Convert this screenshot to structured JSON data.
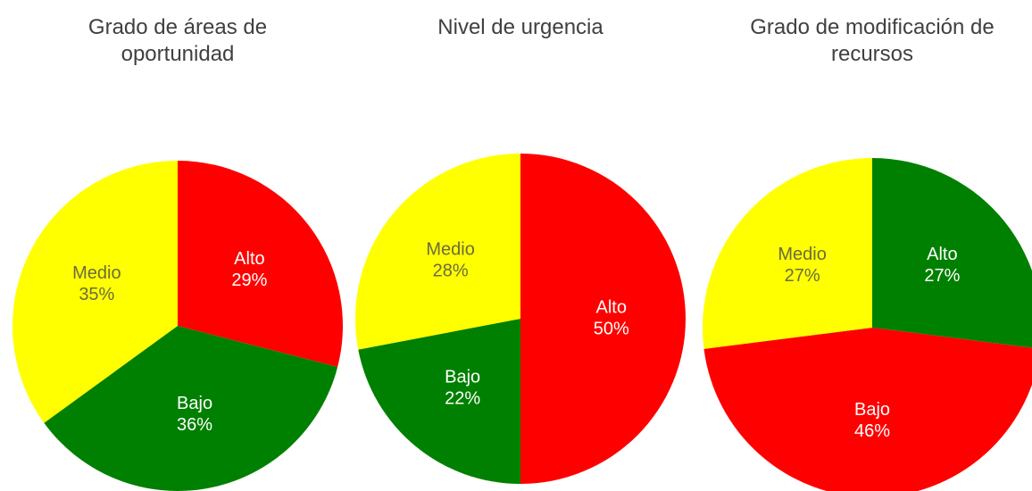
{
  "chart_data": [
    {
      "type": "pie",
      "title": "Grado de áreas de oportunidad",
      "categories": [
        "Alto",
        "Bajo",
        "Medio"
      ],
      "values": [
        29,
        36,
        35
      ],
      "value_labels": [
        "29%",
        "36%",
        "35%"
      ],
      "colors": [
        "#ff0000",
        "#008000",
        "#ffff00"
      ]
    },
    {
      "type": "pie",
      "title": "Nivel de urgencia",
      "categories": [
        "Alto",
        "Bajo",
        "Medio"
      ],
      "values": [
        50,
        22,
        28
      ],
      "value_labels": [
        "50%",
        "22%",
        "28%"
      ],
      "colors": [
        "#ff0000",
        "#008000",
        "#ffff00"
      ]
    },
    {
      "type": "pie",
      "title": "Grado de modificación de recursos",
      "categories": [
        "Alto",
        "Bajo",
        "Medio"
      ],
      "values": [
        27,
        46,
        27
      ],
      "value_labels": [
        "27%",
        "46%",
        "27%"
      ],
      "colors": [
        "#008000",
        "#ff0000",
        "#ffff00"
      ]
    }
  ]
}
